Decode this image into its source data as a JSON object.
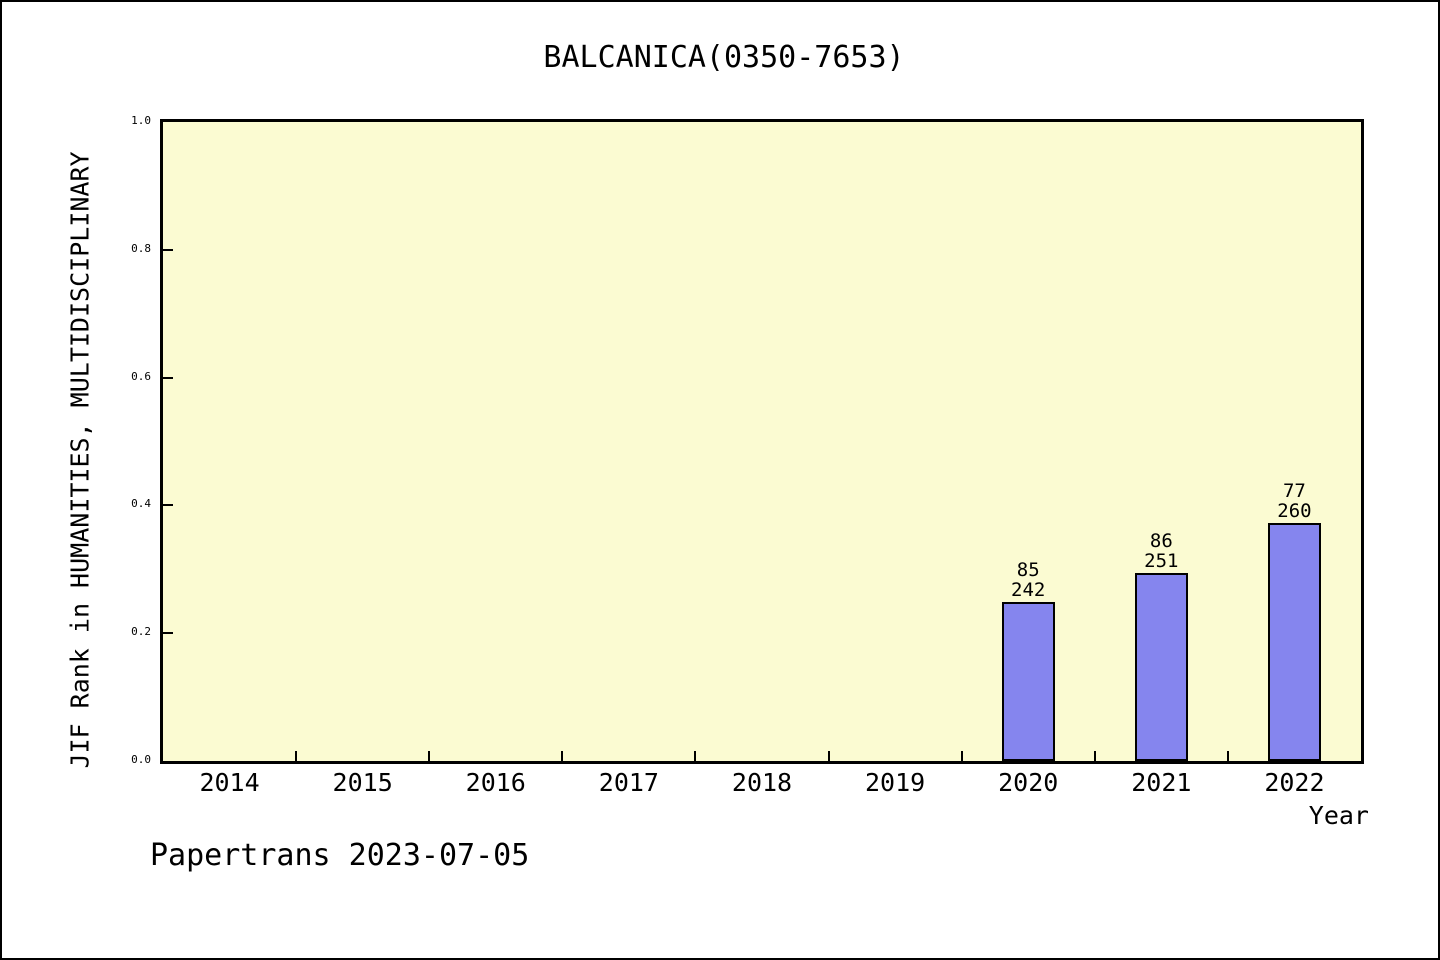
{
  "chart_data": {
    "type": "bar",
    "title": "BALCANICA(0350-7653)",
    "xlabel": "Year",
    "ylabel": "JIF Rank in HUMANITIES, MULTIDISCIPLINARY",
    "categories": [
      "2014",
      "2015",
      "2016",
      "2017",
      "2018",
      "2019",
      "2020",
      "2021",
      "2022"
    ],
    "values": [
      null,
      null,
      null,
      null,
      null,
      null,
      0.249,
      0.294,
      0.372
    ],
    "bars": [
      {
        "year": "2020",
        "rank": "85",
        "total": "242",
        "value": 0.249
      },
      {
        "year": "2021",
        "rank": "86",
        "total": "251",
        "value": 0.294
      },
      {
        "year": "2022",
        "rank": "77",
        "total": "260",
        "value": 0.372
      }
    ],
    "ylim": [
      0.0,
      1.0
    ],
    "yticks": [
      "0.0",
      "0.2",
      "0.4",
      "0.6",
      "0.8",
      "1.0"
    ],
    "grid": false,
    "legend": null,
    "colors": {
      "plot_background": "#FBFBD2",
      "bar_fill": "#8585EE",
      "bar_edge": "#000000",
      "axis": "#000000",
      "text": "#000000"
    }
  },
  "footer": {
    "text": "Papertrans 2023-07-05"
  }
}
